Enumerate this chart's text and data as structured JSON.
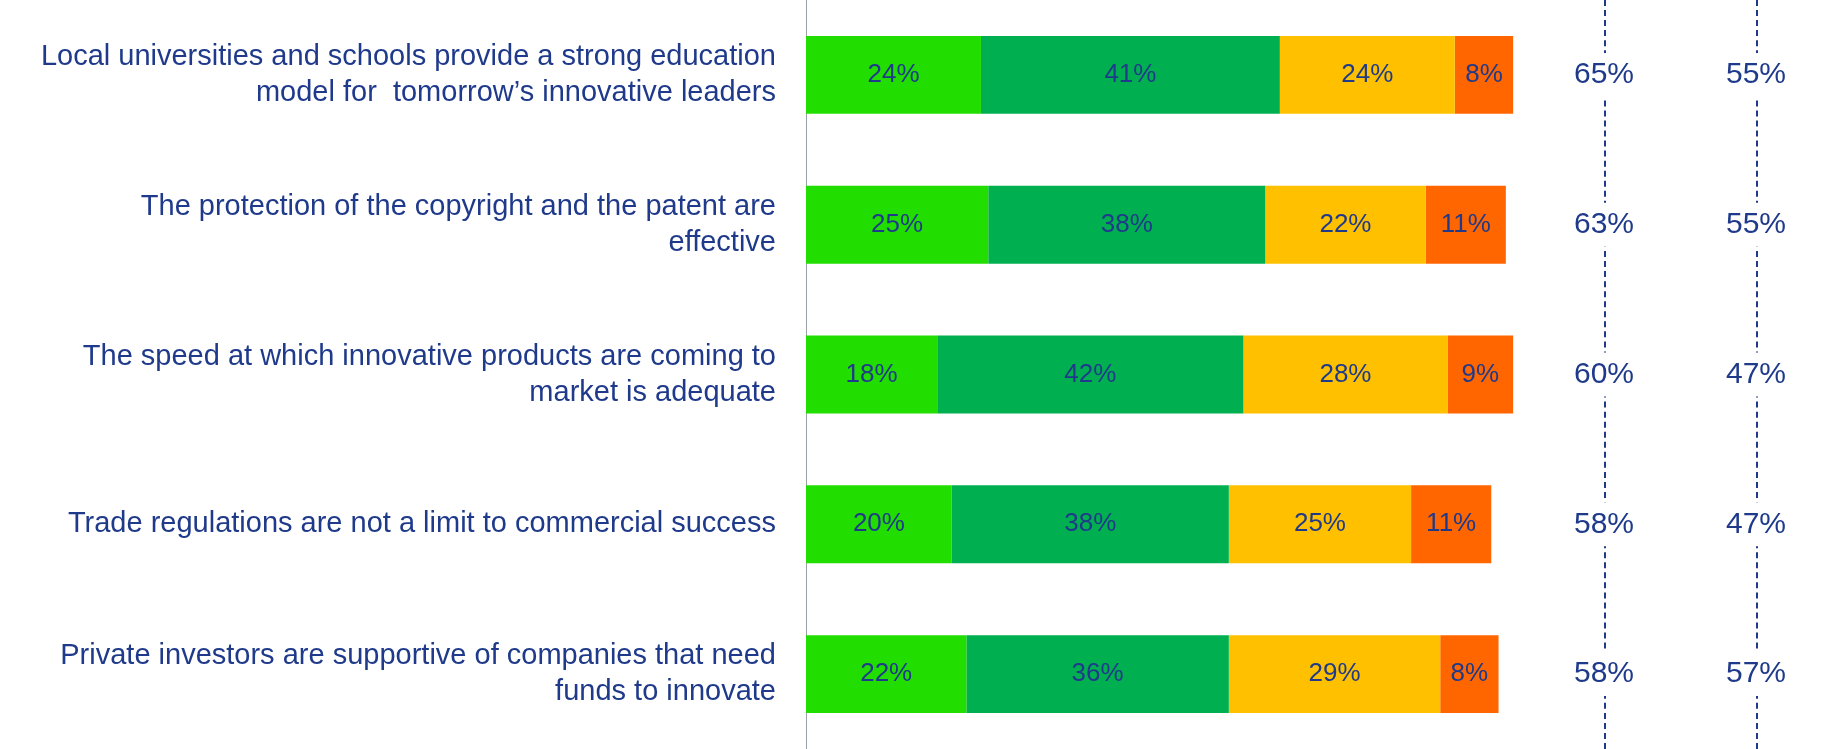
{
  "chart_data": {
    "type": "bar",
    "orientation": "horizontal",
    "stacked": true,
    "categories": [
      "Local universities and schools provide a strong education model for  tomorrow’s innovative leaders",
      "The protection of the copyright and the patent are effective",
      "The speed at which innovative products are coming to market is adequate",
      "Trade regulations are not a limit to commercial success",
      "Private investors are supportive of companies that need funds to innovate"
    ],
    "series": [
      {
        "color": "#22dd00",
        "values": [
          24,
          25,
          18,
          20,
          22
        ],
        "value_labels": [
          "24%",
          "25%",
          "18%",
          "20%",
          "22%"
        ]
      },
      {
        "color": "#00b050",
        "values": [
          41,
          38,
          42,
          38,
          36
        ],
        "value_labels": [
          "41%",
          "38%",
          "42%",
          "38%",
          "36%"
        ]
      },
      {
        "color": "#ffc000",
        "values": [
          24,
          22,
          28,
          25,
          29
        ],
        "value_labels": [
          "24%",
          "22%",
          "28%",
          "25%",
          "29%"
        ]
      },
      {
        "color": "#ff6600",
        "values": [
          8,
          11,
          9,
          11,
          8
        ],
        "value_labels": [
          "8%",
          "11%",
          "9%",
          "11%",
          "8%"
        ]
      }
    ],
    "annotations": [
      "65%",
      "55%",
      "63%",
      "55%",
      "60%",
      "47%",
      "58%",
      "47%",
      "58%",
      "57%"
    ],
    "legend": false
  }
}
